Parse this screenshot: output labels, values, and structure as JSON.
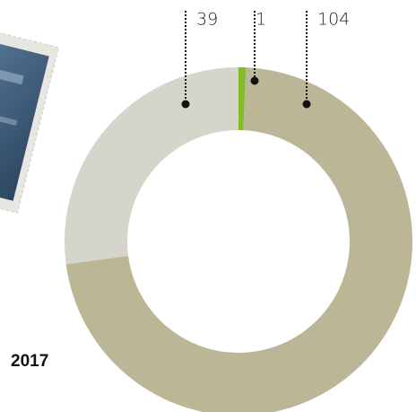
{
  "chart_data": {
    "type": "pie",
    "donut": true,
    "title": "2017",
    "values": [
      1,
      104,
      39
    ],
    "colors": [
      "#86bc2a",
      "#bbb696",
      "#d5d5cb"
    ]
  }
}
